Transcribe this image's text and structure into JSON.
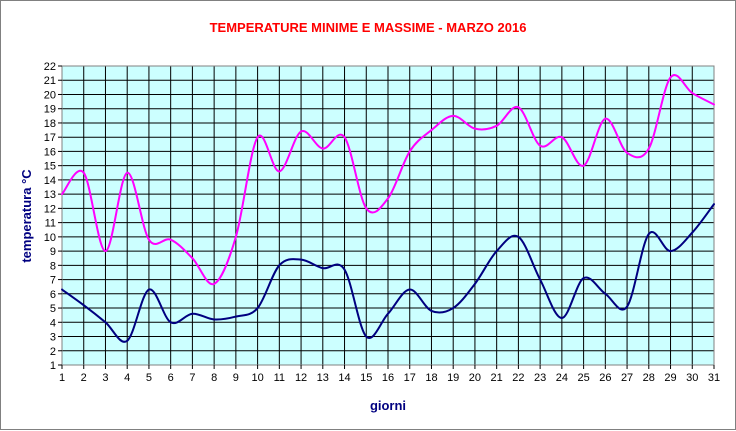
{
  "chart_data": {
    "type": "line",
    "title": "TEMPERATURE MINIME E MASSIME  - MARZO 2016",
    "xlabel": "giorni",
    "ylabel": "temperatura °C",
    "x": [
      1,
      2,
      3,
      4,
      5,
      6,
      7,
      8,
      9,
      10,
      11,
      12,
      13,
      14,
      15,
      16,
      17,
      18,
      19,
      20,
      21,
      22,
      23,
      24,
      25,
      26,
      27,
      28,
      29,
      30,
      31
    ],
    "xlim": [
      1,
      31
    ],
    "ylim": [
      1,
      22
    ],
    "yticks": [
      1,
      2,
      3,
      4,
      5,
      6,
      7,
      8,
      9,
      10,
      11,
      12,
      13,
      14,
      15,
      16,
      17,
      18,
      19,
      20,
      21,
      22
    ],
    "xticks": [
      1,
      2,
      3,
      4,
      5,
      6,
      7,
      8,
      9,
      10,
      11,
      12,
      13,
      14,
      15,
      16,
      17,
      18,
      19,
      20,
      21,
      22,
      23,
      24,
      25,
      26,
      27,
      28,
      29,
      30,
      31
    ],
    "grid": true,
    "plot_background": "#ccffff",
    "title_color": "#ff0000",
    "label_color": "#000080",
    "series": [
      {
        "color": "#ff00ff",
        "values": [
          13.0,
          14.5,
          9.0,
          14.5,
          9.8,
          9.8,
          8.5,
          6.7,
          10.0,
          17.0,
          14.6,
          17.4,
          16.2,
          17.0,
          12.0,
          12.7,
          16.0,
          17.5,
          18.5,
          17.6,
          17.8,
          19.1,
          16.4,
          17.0,
          15.0,
          18.3,
          15.9,
          16.2,
          21.2,
          20.1,
          19.3
        ]
      },
      {
        "color": "#000080",
        "values": [
          6.3,
          5.2,
          4.0,
          2.7,
          6.3,
          4.0,
          4.6,
          4.2,
          4.4,
          5.0,
          8.0,
          8.4,
          7.8,
          7.7,
          3.0,
          4.6,
          6.3,
          4.8,
          5.0,
          6.7,
          9.0,
          10.0,
          7.0,
          4.3,
          7.1,
          6.0,
          5.1,
          10.2,
          9.0,
          10.3,
          12.3
        ]
      }
    ]
  }
}
